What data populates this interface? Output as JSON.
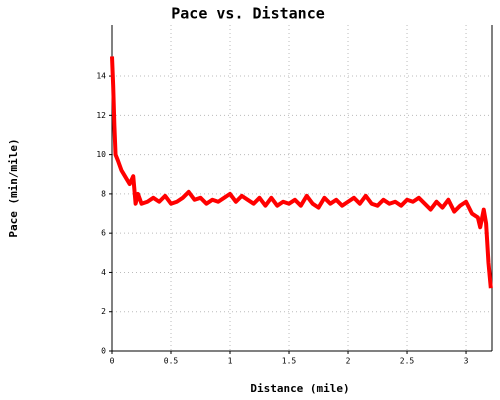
{
  "chart_data": {
    "type": "line",
    "title": "Pace vs. Distance",
    "xlabel": "Distance (mile)",
    "ylabel": "Pace (min/mile)",
    "x": [
      0,
      0.01,
      0.02,
      0.03,
      0.05,
      0.08,
      0.12,
      0.15,
      0.18,
      0.2,
      0.22,
      0.25,
      0.3,
      0.35,
      0.4,
      0.45,
      0.5,
      0.55,
      0.6,
      0.65,
      0.7,
      0.75,
      0.8,
      0.85,
      0.9,
      0.95,
      1.0,
      1.05,
      1.1,
      1.15,
      1.2,
      1.25,
      1.3,
      1.35,
      1.4,
      1.45,
      1.5,
      1.55,
      1.6,
      1.65,
      1.7,
      1.75,
      1.8,
      1.85,
      1.9,
      1.95,
      2.0,
      2.05,
      2.1,
      2.15,
      2.2,
      2.25,
      2.3,
      2.35,
      2.4,
      2.45,
      2.5,
      2.55,
      2.6,
      2.65,
      2.7,
      2.75,
      2.8,
      2.85,
      2.9,
      2.95,
      3.0,
      3.05,
      3.1,
      3.12,
      3.15,
      3.17,
      3.19,
      3.21
    ],
    "series": [
      {
        "name": "Pace",
        "color": "#ff0000",
        "values": [
          15,
          13.5,
          11.5,
          10,
          9.7,
          9.2,
          8.8,
          8.5,
          8.9,
          7.5,
          8,
          7.5,
          7.6,
          7.8,
          7.6,
          7.9,
          7.5,
          7.6,
          7.8,
          8.1,
          7.7,
          7.8,
          7.5,
          7.7,
          7.6,
          7.8,
          8.0,
          7.6,
          7.9,
          7.7,
          7.5,
          7.8,
          7.4,
          7.8,
          7.4,
          7.6,
          7.5,
          7.7,
          7.4,
          7.9,
          7.5,
          7.3,
          7.8,
          7.5,
          7.7,
          7.4,
          7.6,
          7.8,
          7.5,
          7.9,
          7.5,
          7.4,
          7.7,
          7.5,
          7.6,
          7.4,
          7.7,
          7.6,
          7.8,
          7.5,
          7.2,
          7.6,
          7.3,
          7.7,
          7.1,
          7.4,
          7.6,
          7.0,
          6.8,
          6.3,
          7.2,
          6.5,
          4.5,
          3.2
        ]
      }
    ],
    "xlim": [
      0,
      3.22
    ],
    "ylim": [
      0,
      16.6
    ],
    "xticks": [
      0,
      0.5,
      1,
      1.5,
      2,
      2.5,
      3
    ],
    "yticks": [
      0,
      2,
      4,
      6,
      8,
      10,
      12,
      14
    ],
    "grid": true
  }
}
